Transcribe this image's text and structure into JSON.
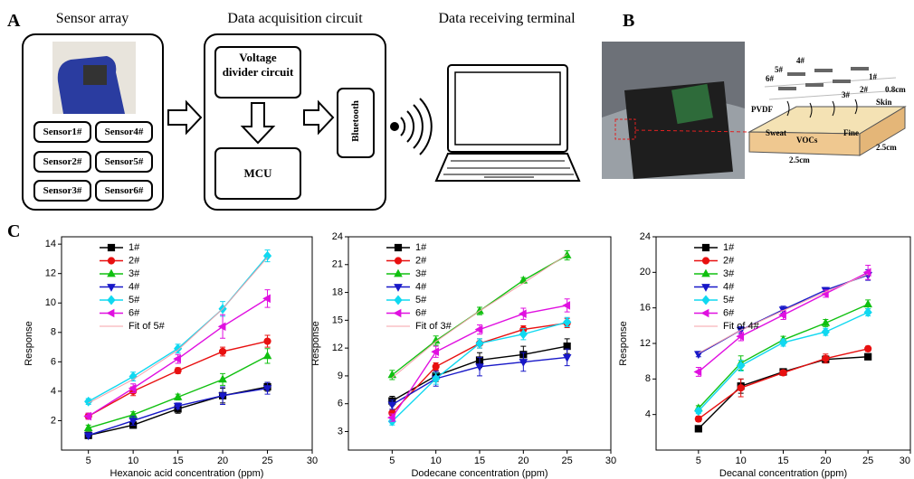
{
  "panel_a": {
    "label": "A",
    "sensor_array_title": "Sensor array",
    "sensors": [
      "Sensor1#",
      "Sensor4#",
      "Sensor2#",
      "Sensor5#",
      "Sensor3#",
      "Sensor6#"
    ],
    "acquisition_title": "Data acquisition circuit",
    "voltage_divider": "Voltage divider circuit",
    "mcu": "MCU",
    "bluetooth": "Bluetooth",
    "terminal_title": "Data receiving terminal"
  },
  "panel_b": {
    "label": "B",
    "sensor_labels": [
      "1#",
      "2#",
      "3#",
      "4#",
      "5#",
      "6#"
    ],
    "pvdf": "PVDF",
    "skin": "Skin",
    "sweat": "Sweat",
    "vocs": "VOCs",
    "fine": "Fine",
    "width": "2.5cm",
    "depth": "2.5cm",
    "thickness": "0.8cm"
  },
  "panel_c": {
    "label": "C"
  },
  "chart_data": [
    {
      "type": "line",
      "x_label": "Hexanoic acid concentration (ppm)",
      "y_label": "Response",
      "x": [
        5,
        10,
        15,
        20,
        25
      ],
      "xlim": [
        2,
        30
      ],
      "xticks": [
        5,
        10,
        15,
        20,
        25,
        30
      ],
      "ylim": [
        0,
        14.5
      ],
      "yticks": [
        2,
        4,
        6,
        8,
        10,
        12,
        14
      ],
      "legend": "upper left",
      "series": [
        {
          "name": "1#",
          "color": "#000000",
          "marker": "square",
          "values": [
            1.0,
            1.7,
            2.8,
            3.7,
            4.3
          ],
          "errors": [
            0.1,
            0.2,
            0.3,
            0.5,
            0.3
          ]
        },
        {
          "name": "2#",
          "color": "#e81010",
          "marker": "circle",
          "values": [
            2.3,
            4.0,
            5.4,
            6.7,
            7.4
          ],
          "errors": [
            0.2,
            0.3,
            0.2,
            0.3,
            0.4
          ]
        },
        {
          "name": "3#",
          "color": "#10c010",
          "marker": "triangle-up",
          "values": [
            1.5,
            2.4,
            3.6,
            4.8,
            6.4
          ],
          "errors": [
            0.2,
            0.2,
            0.2,
            0.4,
            0.5
          ]
        },
        {
          "name": "4#",
          "color": "#1818c8",
          "marker": "triangle-down",
          "values": [
            1.0,
            2.0,
            3.0,
            3.7,
            4.2
          ],
          "errors": [
            0.1,
            0.3,
            0.2,
            0.6,
            0.4
          ]
        },
        {
          "name": "5#",
          "color": "#10d8f0",
          "marker": "diamond",
          "values": [
            3.3,
            5.0,
            6.9,
            9.6,
            13.2
          ],
          "errors": [
            0.2,
            0.3,
            0.3,
            0.5,
            0.4
          ]
        },
        {
          "name": "6#",
          "color": "#e010e0",
          "marker": "triangle-left",
          "values": [
            2.3,
            4.2,
            6.2,
            8.4,
            10.3
          ],
          "errors": [
            0.2,
            0.3,
            0.3,
            0.8,
            0.6
          ]
        },
        {
          "name": "Fit of 5#",
          "color": "#f4a0a8",
          "marker": "none",
          "values": [
            3.2,
            4.8,
            6.8,
            9.6,
            13.1
          ]
        }
      ]
    },
    {
      "type": "line",
      "x_label": "Dodecane concentration (ppm)",
      "y_label": "Response",
      "x": [
        5,
        10,
        15,
        20,
        25
      ],
      "xlim": [
        0,
        30
      ],
      "xticks": [
        5,
        10,
        15,
        20,
        25,
        30
      ],
      "ylim": [
        1,
        24
      ],
      "yticks": [
        3,
        6,
        9,
        12,
        15,
        18,
        21,
        24
      ],
      "legend": "upper left",
      "series": [
        {
          "name": "1#",
          "color": "#000000",
          "marker": "square",
          "values": [
            6.3,
            9.0,
            10.7,
            11.3,
            12.2
          ],
          "errors": [
            0.5,
            0.6,
            0.8,
            0.9,
            0.8
          ]
        },
        {
          "name": "2#",
          "color": "#e81010",
          "marker": "circle",
          "values": [
            5.0,
            10.0,
            12.5,
            14.0,
            14.7
          ],
          "errors": [
            0.4,
            0.4,
            0.5,
            0.4,
            0.5
          ]
        },
        {
          "name": "3#",
          "color": "#10c010",
          "marker": "triangle-up",
          "values": [
            9.1,
            12.8,
            16.0,
            19.3,
            22.0
          ],
          "errors": [
            0.5,
            0.5,
            0.4,
            0.3,
            0.5
          ]
        },
        {
          "name": "4#",
          "color": "#1818c8",
          "marker": "triangle-down",
          "values": [
            5.9,
            8.7,
            10.0,
            10.5,
            11.0
          ],
          "errors": [
            0.5,
            0.8,
            1.0,
            1.0,
            0.9
          ]
        },
        {
          "name": "5#",
          "color": "#10d8f0",
          "marker": "diamond",
          "values": [
            4.1,
            8.7,
            12.5,
            13.5,
            14.8
          ],
          "errors": [
            0.4,
            0.6,
            0.5,
            0.6,
            0.5
          ]
        },
        {
          "name": "6#",
          "color": "#e010e0",
          "marker": "triangle-left",
          "values": [
            4.5,
            11.6,
            14.0,
            15.7,
            16.6
          ],
          "errors": [
            0.4,
            0.6,
            0.5,
            0.6,
            0.7
          ]
        },
        {
          "name": "Fit of 3#",
          "color": "#f4a0a8",
          "marker": "none",
          "values": [
            8.8,
            12.7,
            16.0,
            19.0,
            22.1
          ]
        }
      ]
    },
    {
      "type": "line",
      "x_label": "Decanal concentration (ppm)",
      "y_label": "Response",
      "x": [
        5,
        10,
        15,
        20,
        25
      ],
      "xlim": [
        0,
        30
      ],
      "xticks": [
        5,
        10,
        15,
        20,
        25,
        30
      ],
      "ylim": [
        0,
        24
      ],
      "yticks": [
        4,
        8,
        12,
        16,
        20,
        24
      ],
      "legend": "upper left",
      "series": [
        {
          "name": "1#",
          "color": "#000000",
          "marker": "square",
          "values": [
            2.4,
            7.2,
            8.8,
            10.2,
            10.5
          ],
          "errors": [
            0.2,
            0.8,
            0.3,
            0.4,
            0.3
          ]
        },
        {
          "name": "2#",
          "color": "#e81010",
          "marker": "circle",
          "values": [
            3.5,
            7.0,
            8.7,
            10.3,
            11.4
          ],
          "errors": [
            0.3,
            1.0,
            0.3,
            0.5,
            0.3
          ]
        },
        {
          "name": "3#",
          "color": "#10c010",
          "marker": "triangle-up",
          "values": [
            4.7,
            9.8,
            12.4,
            14.3,
            16.4
          ],
          "errors": [
            0.3,
            0.8,
            0.4,
            0.4,
            0.5
          ]
        },
        {
          "name": "4#",
          "color": "#1818c8",
          "marker": "triangle-down",
          "values": [
            10.8,
            13.5,
            15.8,
            18.0,
            19.7
          ],
          "errors": [
            0.3,
            0.4,
            0.4,
            0.3,
            0.6
          ]
        },
        {
          "name": "5#",
          "color": "#10d8f0",
          "marker": "diamond",
          "values": [
            4.4,
            9.5,
            12.1,
            13.3,
            15.5
          ],
          "errors": [
            0.3,
            0.6,
            0.4,
            0.4,
            0.4
          ]
        },
        {
          "name": "6#",
          "color": "#e010e0",
          "marker": "triangle-left",
          "values": [
            8.8,
            12.8,
            15.2,
            17.6,
            20.0
          ],
          "errors": [
            0.5,
            0.5,
            0.5,
            0.4,
            0.8
          ]
        },
        {
          "name": "Fit of 4#",
          "color": "#f4a0a8",
          "marker": "none",
          "values": [
            10.9,
            13.5,
            15.7,
            17.8,
            19.8
          ]
        }
      ]
    }
  ]
}
